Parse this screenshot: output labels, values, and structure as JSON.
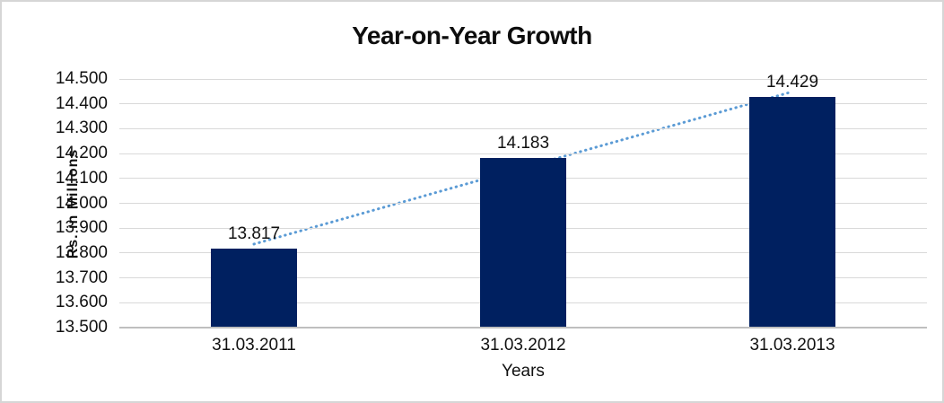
{
  "title": "Year-on-Year Growth",
  "chart_data": {
    "type": "bar",
    "title": "Year-on-Year Growth",
    "categories": [
      "31.03.2011",
      "31.03.2012",
      "31.03.2013"
    ],
    "values": [
      13.817,
      14.183,
      14.429
    ],
    "data_labels": [
      "13.817",
      "14.183",
      "14.429"
    ],
    "xlabel": "Years",
    "ylabel": "Rs. in Millions",
    "ylim": [
      13.5,
      14.5
    ],
    "ytick_step": 0.1,
    "ytick_labels": [
      "13.500",
      "13.600",
      "13.700",
      "13.800",
      "13.900",
      "14.000",
      "14.100",
      "14.200",
      "14.300",
      "14.400",
      "14.500"
    ],
    "grid": true,
    "legend": "none",
    "bar_color": "#002060",
    "gridline_color": "#d9d9d9",
    "baseline_color": "#bfbfbf",
    "trendline": {
      "type": "linear",
      "style": "dotted",
      "color": "#5b9bd5",
      "start_value": 13.836,
      "end_value": 14.449
    }
  }
}
